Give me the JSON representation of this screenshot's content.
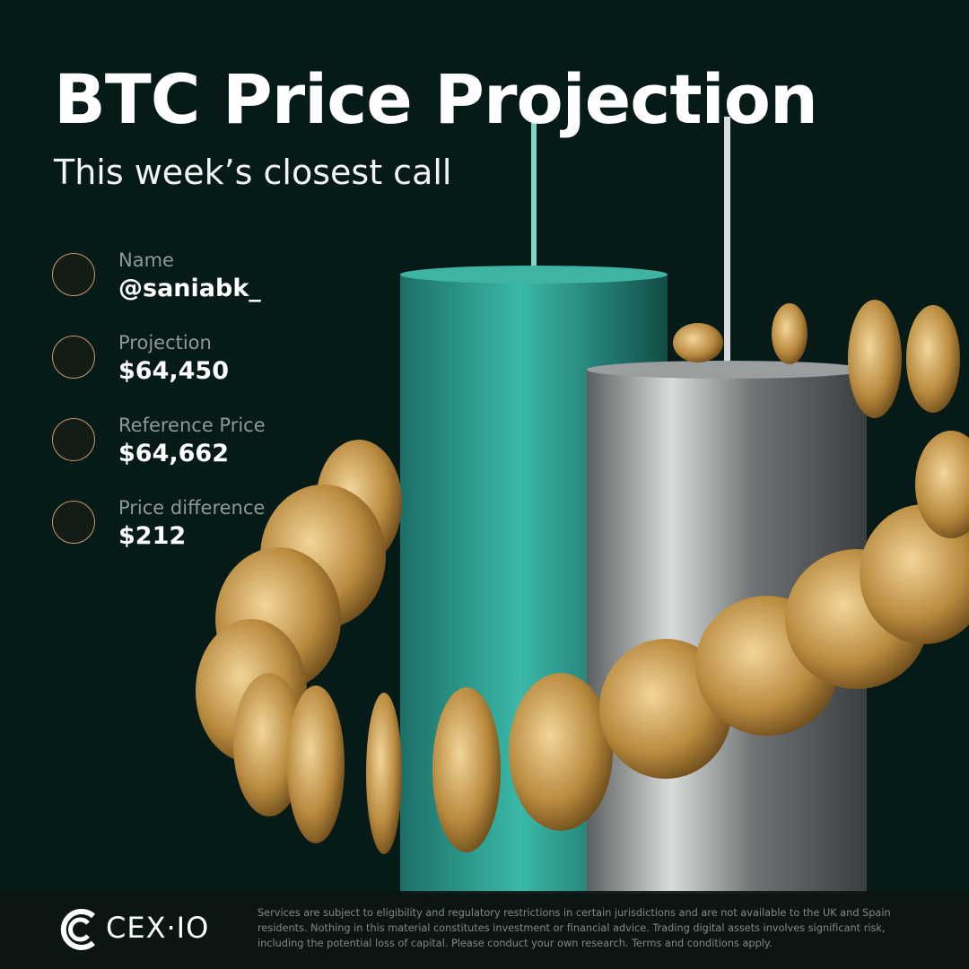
{
  "header": {
    "title": "BTC Price Projection",
    "subtitle": "This week’s closest call"
  },
  "items": [
    {
      "label": "Name",
      "value": "@saniabk_"
    },
    {
      "label": "Projection",
      "value": "$64,450"
    },
    {
      "label": "Reference Price",
      "value": "$64,662"
    },
    {
      "label": "Price difference",
      "value": "$212"
    }
  ],
  "footer": {
    "brand": "CEX·IO",
    "disclaimer": "Services are subject to eligibility and regulatory restrictions in certain jurisdictions and are not available to the UK and Spain residents. Nothing in this material constitutes investment or financial advice. Trading digital assets involves significant risk, including the potential loss of capital. Please conduct your own research. Terms and conditions apply."
  }
}
